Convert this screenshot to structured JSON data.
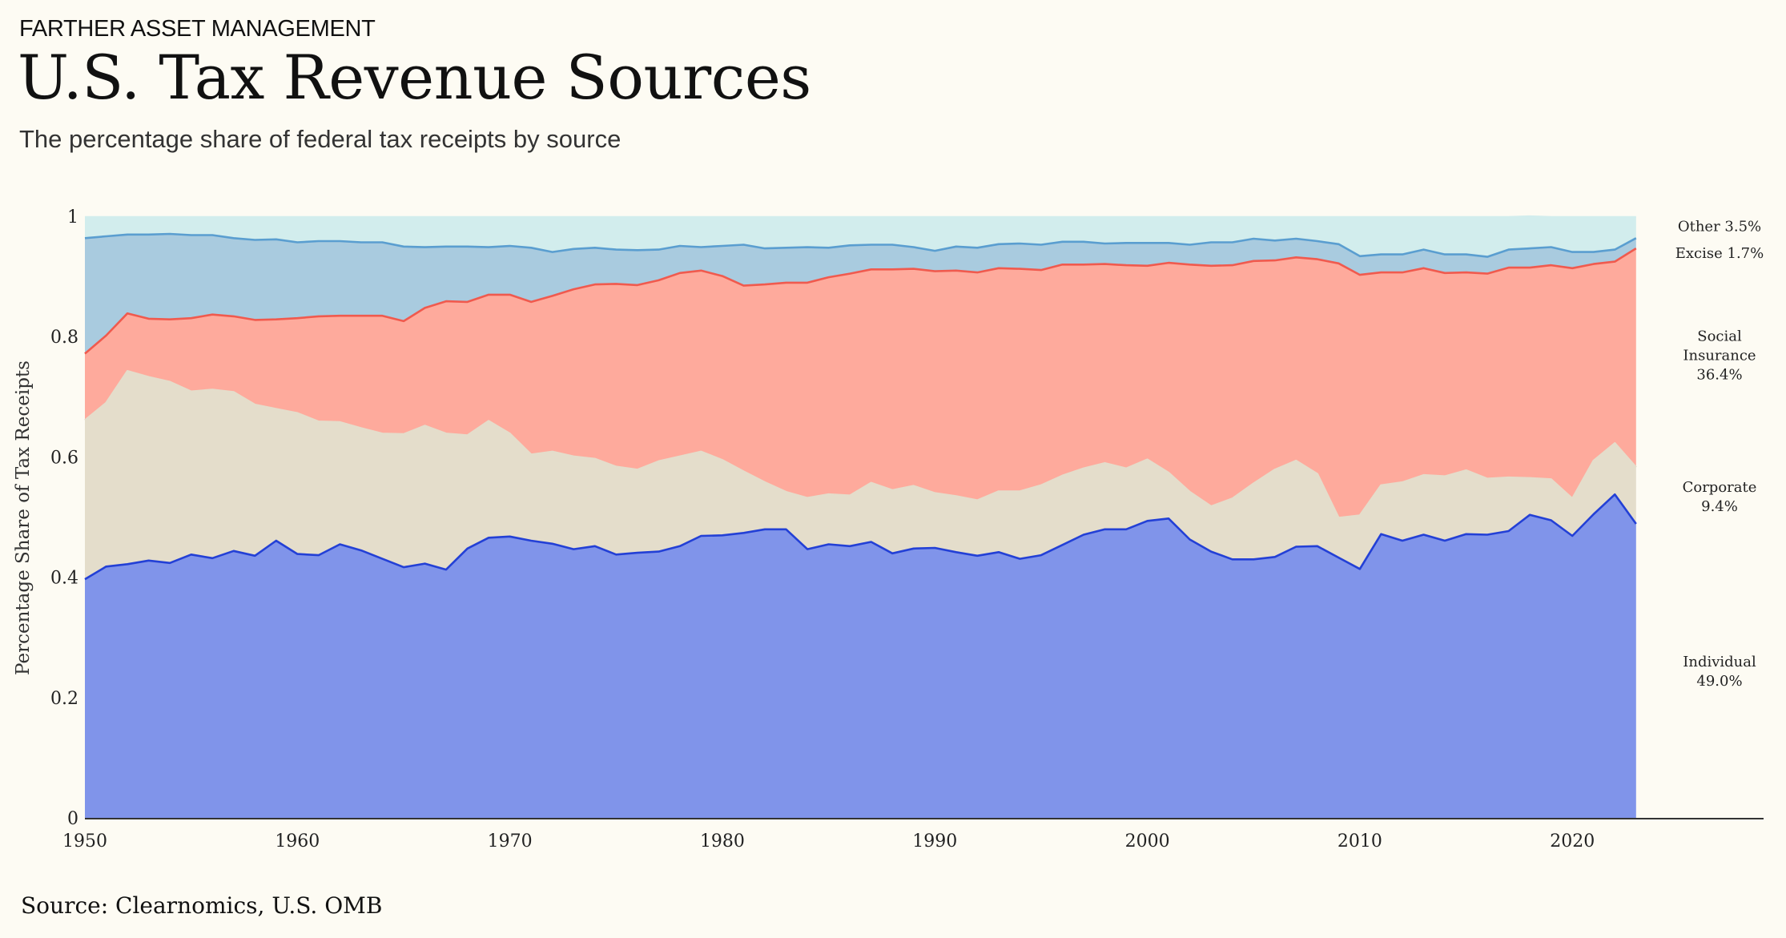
{
  "header": {
    "brand": "FARTHER ASSET MANAGEMENT",
    "title": "U.S. Tax Revenue Sources",
    "subtitle": "The percentage share of federal tax receipts by source"
  },
  "footer": {
    "source": "Source: Clearnomics, U.S. OMB"
  },
  "chart_data": {
    "type": "area",
    "stacked": true,
    "title": "U.S. Tax Revenue Sources",
    "xlabel": "",
    "ylabel": "Percentage Share of Tax Receipts",
    "xlim": [
      1950,
      2029
    ],
    "ylim": [
      0,
      1
    ],
    "xticks": [
      1950,
      1960,
      1970,
      1980,
      1990,
      2000,
      2010,
      2020
    ],
    "yticks": [
      0,
      0.2,
      0.4,
      0.6,
      0.8,
      1
    ],
    "ytick_labels": [
      "0",
      "0.2",
      "0.4",
      "0.6",
      "0.8",
      "1"
    ],
    "grid": false,
    "legend": "right (direct labels)",
    "x": [
      1950,
      1951,
      1952,
      1953,
      1954,
      1955,
      1956,
      1957,
      1958,
      1959,
      1960,
      1961,
      1962,
      1963,
      1964,
      1965,
      1966,
      1967,
      1968,
      1969,
      1970,
      1971,
      1972,
      1973,
      1974,
      1975,
      1976,
      1977,
      1978,
      1979,
      1980,
      1981,
      1982,
      1983,
      1984,
      1985,
      1986,
      1987,
      1988,
      1989,
      1990,
      1991,
      1992,
      1993,
      1994,
      1995,
      1996,
      1997,
      1998,
      1999,
      2000,
      2001,
      2002,
      2003,
      2004,
      2005,
      2006,
      2007,
      2008,
      2009,
      2010,
      2011,
      2012,
      2013,
      2014,
      2015,
      2016,
      2017,
      2018,
      2019,
      2020,
      2021,
      2022,
      2023
    ],
    "series": [
      {
        "name": "Individual",
        "label_lines": [
          "Individual",
          "49.0%"
        ],
        "color_fill": "#8094ea",
        "color_line": "#2340d6",
        "values": [
          0.398,
          0.419,
          0.423,
          0.429,
          0.425,
          0.439,
          0.433,
          0.445,
          0.437,
          0.462,
          0.44,
          0.438,
          0.456,
          0.446,
          0.432,
          0.418,
          0.424,
          0.414,
          0.449,
          0.467,
          0.469,
          0.462,
          0.457,
          0.448,
          0.453,
          0.439,
          0.442,
          0.444,
          0.453,
          0.47,
          0.471,
          0.475,
          0.481,
          0.481,
          0.448,
          0.456,
          0.453,
          0.46,
          0.441,
          0.449,
          0.45,
          0.443,
          0.437,
          0.443,
          0.432,
          0.438,
          0.455,
          0.472,
          0.481,
          0.481,
          0.495,
          0.499,
          0.464,
          0.444,
          0.431,
          0.431,
          0.435,
          0.452,
          0.453,
          0.434,
          0.415,
          0.473,
          0.462,
          0.472,
          0.462,
          0.473,
          0.472,
          0.478,
          0.505,
          0.496,
          0.47,
          0.506,
          0.539,
          0.49
        ]
      },
      {
        "name": "Corporate",
        "label_lines": [
          "Corporate",
          "9.4%"
        ],
        "color_fill": "#e4ddcb",
        "color_line": "#e4ddcb",
        "values": [
          0.264,
          0.272,
          0.321,
          0.305,
          0.301,
          0.271,
          0.28,
          0.264,
          0.251,
          0.219,
          0.234,
          0.222,
          0.203,
          0.203,
          0.208,
          0.221,
          0.229,
          0.226,
          0.188,
          0.194,
          0.171,
          0.143,
          0.153,
          0.154,
          0.145,
          0.146,
          0.138,
          0.15,
          0.149,
          0.14,
          0.125,
          0.102,
          0.078,
          0.062,
          0.085,
          0.083,
          0.084,
          0.098,
          0.105,
          0.104,
          0.091,
          0.093,
          0.092,
          0.101,
          0.112,
          0.116,
          0.115,
          0.11,
          0.11,
          0.101,
          0.102,
          0.076,
          0.079,
          0.075,
          0.101,
          0.126,
          0.145,
          0.143,
          0.12,
          0.066,
          0.089,
          0.081,
          0.097,
          0.099,
          0.107,
          0.106,
          0.093,
          0.089,
          0.061,
          0.068,
          0.062,
          0.089,
          0.085,
          0.094
        ]
      },
      {
        "name": "Social Insurance",
        "label_lines": [
          "Social",
          "Insurance",
          "36.4%"
        ],
        "color_fill": "#feaa9c",
        "color_line": "#f05a4e",
        "values": [
          0.111,
          0.112,
          0.096,
          0.097,
          0.104,
          0.122,
          0.125,
          0.126,
          0.141,
          0.149,
          0.158,
          0.175,
          0.177,
          0.187,
          0.196,
          0.188,
          0.196,
          0.22,
          0.222,
          0.21,
          0.231,
          0.254,
          0.259,
          0.278,
          0.29,
          0.304,
          0.307,
          0.301,
          0.305,
          0.301,
          0.306,
          0.309,
          0.329,
          0.348,
          0.358,
          0.361,
          0.369,
          0.355,
          0.367,
          0.361,
          0.369,
          0.375,
          0.379,
          0.371,
          0.37,
          0.358,
          0.351,
          0.339,
          0.331,
          0.338,
          0.322,
          0.349,
          0.378,
          0.4,
          0.388,
          0.37,
          0.348,
          0.338,
          0.357,
          0.423,
          0.4,
          0.354,
          0.349,
          0.344,
          0.338,
          0.329,
          0.341,
          0.349,
          0.35,
          0.356,
          0.383,
          0.327,
          0.302,
          0.364
        ]
      },
      {
        "name": "Excise",
        "label_lines": [
          "Excise  1.7%"
        ],
        "color_fill": "#a9cbdf",
        "color_line": "#5a9ed0",
        "values": [
          0.192,
          0.165,
          0.131,
          0.14,
          0.142,
          0.138,
          0.132,
          0.13,
          0.133,
          0.133,
          0.126,
          0.125,
          0.124,
          0.122,
          0.122,
          0.124,
          0.101,
          0.091,
          0.092,
          0.079,
          0.081,
          0.09,
          0.073,
          0.067,
          0.061,
          0.057,
          0.058,
          0.051,
          0.045,
          0.039,
          0.05,
          0.068,
          0.06,
          0.058,
          0.059,
          0.049,
          0.047,
          0.041,
          0.041,
          0.036,
          0.034,
          0.04,
          0.041,
          0.04,
          0.042,
          0.042,
          0.038,
          0.038,
          0.034,
          0.037,
          0.038,
          0.033,
          0.033,
          0.039,
          0.038,
          0.037,
          0.033,
          0.031,
          0.03,
          0.032,
          0.031,
          0.03,
          0.03,
          0.031,
          0.031,
          0.03,
          0.028,
          0.03,
          0.032,
          0.03,
          0.027,
          0.02,
          0.02,
          0.017
        ]
      },
      {
        "name": "Other",
        "label_lines": [
          "Other  3.5%"
        ],
        "color_fill": "#d2eded",
        "color_line": "#d2eded",
        "values": [
          0.035,
          0.032,
          0.029,
          0.029,
          0.028,
          0.03,
          0.03,
          0.035,
          0.038,
          0.037,
          0.042,
          0.04,
          0.04,
          0.042,
          0.042,
          0.049,
          0.05,
          0.049,
          0.049,
          0.05,
          0.048,
          0.051,
          0.058,
          0.053,
          0.051,
          0.054,
          0.055,
          0.054,
          0.048,
          0.05,
          0.048,
          0.046,
          0.052,
          0.051,
          0.05,
          0.051,
          0.047,
          0.046,
          0.046,
          0.05,
          0.056,
          0.049,
          0.051,
          0.045,
          0.044,
          0.046,
          0.041,
          0.041,
          0.044,
          0.043,
          0.043,
          0.043,
          0.046,
          0.042,
          0.042,
          0.036,
          0.039,
          0.036,
          0.04,
          0.045,
          0.065,
          0.062,
          0.062,
          0.054,
          0.062,
          0.062,
          0.066,
          0.054,
          0.053,
          0.05,
          0.058,
          0.058,
          0.054,
          0.035
        ]
      }
    ]
  }
}
